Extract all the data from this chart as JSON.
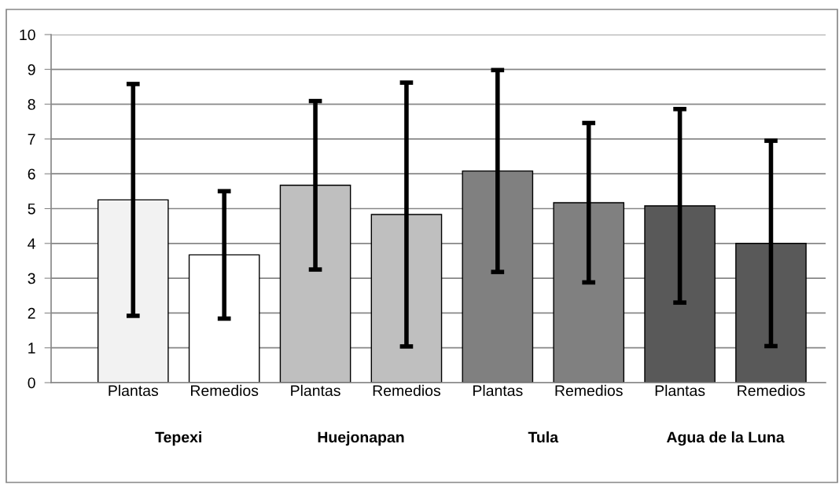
{
  "chart_data": {
    "type": "bar",
    "categories": [
      "Plantas",
      "Remedios",
      "Plantas",
      "Remedios",
      "Plantas",
      "Remedios",
      "Plantas",
      "Remedios"
    ],
    "values": [
      5.25,
      3.67,
      5.67,
      4.83,
      6.08,
      5.17,
      5.08,
      4.0
    ],
    "errors": [
      3.33,
      1.83,
      2.42,
      3.79,
      2.9,
      2.29,
      2.78,
      2.95
    ],
    "colors": [
      "#f2f2f2",
      "#ffffff",
      "#bfbfbf",
      "#bfbfbf",
      "#808080",
      "#808080",
      "#595959",
      "#595959"
    ],
    "annotations": [
      "Tepexi",
      "Huejonapan",
      "Tula",
      "Agua de la Luna"
    ],
    "ylim": [
      0,
      10
    ],
    "yticks": [
      0,
      1,
      2,
      3,
      4,
      5,
      6,
      7,
      8,
      9,
      10
    ],
    "grid": "y",
    "legend": false
  }
}
